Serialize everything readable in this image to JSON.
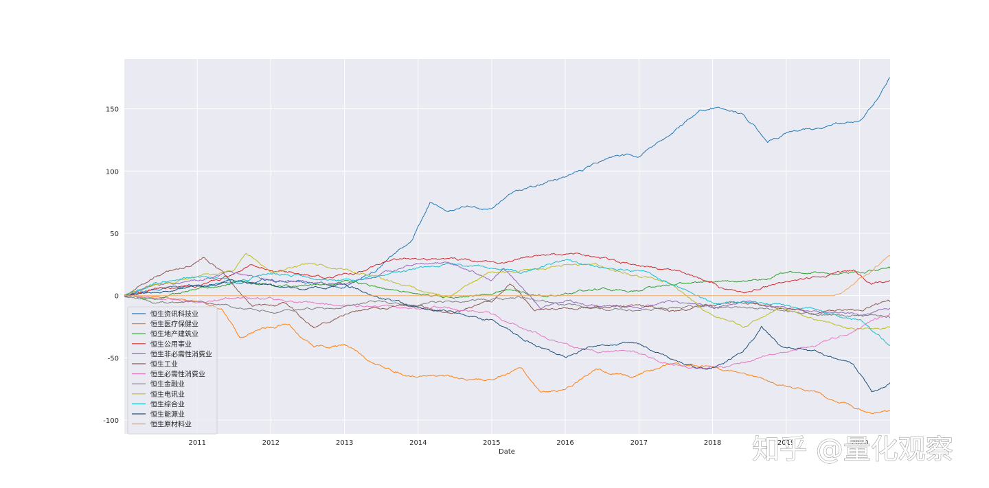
{
  "watermark": "知乎 @量化观察",
  "chart_data": {
    "type": "line",
    "title": "",
    "xlabel": "Date",
    "ylabel": "",
    "xlim": [
      "2010-01-04",
      "2020-05-31"
    ],
    "ylim": [
      -111,
      190
    ],
    "x_ticks": [
      "2011",
      "2012",
      "2013",
      "2014",
      "2015",
      "2016",
      "2017",
      "2018",
      "2019",
      "2020"
    ],
    "y_ticks": [
      -100,
      -50,
      0,
      50,
      100,
      150
    ],
    "grid": true,
    "legend_position": "lower-left",
    "series": [
      {
        "name": "恒生资讯科技业",
        "color": "#1f77b4",
        "points": [
          [
            "2010-01-04",
            0
          ],
          [
            "2010-06-01",
            4
          ],
          [
            "2011-01-01",
            8
          ],
          [
            "2011-07-01",
            10
          ],
          [
            "2012-01-01",
            12
          ],
          [
            "2012-07-01",
            10
          ],
          [
            "2013-01-01",
            8
          ],
          [
            "2013-06-01",
            20
          ],
          [
            "2013-12-01",
            45
          ],
          [
            "2014-03-01",
            75
          ],
          [
            "2014-06-01",
            68
          ],
          [
            "2014-09-01",
            72
          ],
          [
            "2015-01-01",
            70
          ],
          [
            "2015-04-01",
            82
          ],
          [
            "2015-08-01",
            88
          ],
          [
            "2016-01-01",
            96
          ],
          [
            "2016-06-01",
            105
          ],
          [
            "2016-09-01",
            113
          ],
          [
            "2017-01-01",
            112
          ],
          [
            "2017-06-01",
            128
          ],
          [
            "2017-11-01",
            150
          ],
          [
            "2018-02-01",
            152
          ],
          [
            "2018-06-01",
            145
          ],
          [
            "2018-10-01",
            125
          ],
          [
            "2019-01-01",
            130
          ],
          [
            "2019-06-01",
            134
          ],
          [
            "2019-10-01",
            138
          ],
          [
            "2020-01-01",
            140
          ],
          [
            "2020-03-01",
            152
          ],
          [
            "2020-05-31",
            175
          ]
        ]
      },
      {
        "name": "恒生医疗保健业",
        "color": "#ff7f0e",
        "points": [
          [
            "2010-01-04",
            0
          ],
          [
            "2010-06-01",
            -2
          ],
          [
            "2011-01-01",
            -5
          ],
          [
            "2011-05-01",
            -10
          ],
          [
            "2011-08-01",
            -35
          ],
          [
            "2011-11-01",
            -28
          ],
          [
            "2012-04-01",
            -22
          ],
          [
            "2012-08-01",
            -42
          ],
          [
            "2013-01-01",
            -40
          ],
          [
            "2013-06-01",
            -55
          ],
          [
            "2013-11-01",
            -63
          ],
          [
            "2014-06-01",
            -65
          ],
          [
            "2015-01-01",
            -68
          ],
          [
            "2015-06-01",
            -60
          ],
          [
            "2015-09-01",
            -78
          ],
          [
            "2016-01-01",
            -75
          ],
          [
            "2016-06-01",
            -60
          ],
          [
            "2016-12-01",
            -65
          ],
          [
            "2017-06-01",
            -55
          ],
          [
            "2018-01-01",
            -57
          ],
          [
            "2018-06-01",
            -62
          ],
          [
            "2018-12-01",
            -72
          ],
          [
            "2019-06-01",
            -78
          ],
          [
            "2019-12-01",
            -90
          ],
          [
            "2020-03-01",
            -95
          ],
          [
            "2020-05-31",
            -92
          ]
        ]
      },
      {
        "name": "恒生地产建筑业",
        "color": "#2ca02c",
        "points": [
          [
            "2010-01-04",
            0
          ],
          [
            "2010-06-01",
            -3
          ],
          [
            "2011-01-01",
            5
          ],
          [
            "2011-08-01",
            10
          ],
          [
            "2012-06-01",
            8
          ],
          [
            "2013-01-01",
            12
          ],
          [
            "2013-06-01",
            6
          ],
          [
            "2014-01-01",
            2
          ],
          [
            "2014-08-01",
            -2
          ],
          [
            "2015-03-01",
            5
          ],
          [
            "2015-09-01",
            0
          ],
          [
            "2016-06-01",
            5
          ],
          [
            "2017-01-01",
            4
          ],
          [
            "2017-08-01",
            10
          ],
          [
            "2018-06-01",
            12
          ],
          [
            "2019-01-01",
            17
          ],
          [
            "2019-06-01",
            20
          ],
          [
            "2020-01-01",
            18
          ],
          [
            "2020-05-31",
            22
          ]
        ]
      },
      {
        "name": "恒生公用事业",
        "color": "#d62728",
        "points": [
          [
            "2010-01-04",
            0
          ],
          [
            "2010-06-01",
            5
          ],
          [
            "2011-01-01",
            8
          ],
          [
            "2011-06-01",
            15
          ],
          [
            "2011-10-01",
            25
          ],
          [
            "2012-03-01",
            20
          ],
          [
            "2012-09-01",
            15
          ],
          [
            "2013-03-01",
            18
          ],
          [
            "2013-09-01",
            30
          ],
          [
            "2014-03-01",
            28
          ],
          [
            "2014-09-01",
            28
          ],
          [
            "2015-03-01",
            28
          ],
          [
            "2015-09-01",
            32
          ],
          [
            "2016-03-01",
            33
          ],
          [
            "2016-09-01",
            28
          ],
          [
            "2017-03-01",
            22
          ],
          [
            "2017-09-01",
            18
          ],
          [
            "2018-03-01",
            5
          ],
          [
            "2018-06-01",
            2
          ],
          [
            "2018-12-01",
            10
          ],
          [
            "2019-06-01",
            15
          ],
          [
            "2019-12-01",
            20
          ],
          [
            "2020-03-01",
            10
          ],
          [
            "2020-05-31",
            12
          ]
        ]
      },
      {
        "name": "恒生非必需性消费业",
        "color": "#9467bd",
        "points": [
          [
            "2010-01-04",
            0
          ],
          [
            "2010-06-01",
            8
          ],
          [
            "2011-01-01",
            12
          ],
          [
            "2011-06-01",
            18
          ],
          [
            "2012-01-01",
            12
          ],
          [
            "2012-06-01",
            10
          ],
          [
            "2013-01-01",
            8
          ],
          [
            "2013-06-01",
            15
          ],
          [
            "2014-01-01",
            26
          ],
          [
            "2014-06-01",
            27
          ],
          [
            "2015-01-01",
            12
          ],
          [
            "2015-03-01",
            22
          ],
          [
            "2015-06-01",
            5
          ],
          [
            "2015-09-01",
            -10
          ],
          [
            "2016-01-01",
            -5
          ],
          [
            "2016-06-01",
            -8
          ],
          [
            "2017-01-01",
            -10
          ],
          [
            "2017-06-01",
            -5
          ],
          [
            "2018-01-01",
            -8
          ],
          [
            "2018-06-01",
            -5
          ],
          [
            "2019-01-01",
            -10
          ],
          [
            "2019-06-01",
            -12
          ],
          [
            "2020-01-01",
            -15
          ],
          [
            "2020-05-31",
            -10
          ]
        ]
      },
      {
        "name": "恒生工业",
        "color": "#8c564b",
        "points": [
          [
            "2010-01-04",
            0
          ],
          [
            "2010-06-01",
            15
          ],
          [
            "2010-12-01",
            25
          ],
          [
            "2011-02-01",
            32
          ],
          [
            "2011-05-01",
            20
          ],
          [
            "2011-10-01",
            -10
          ],
          [
            "2012-03-01",
            -5
          ],
          [
            "2012-08-01",
            -25
          ],
          [
            "2013-01-01",
            -15
          ],
          [
            "2013-06-01",
            -10
          ],
          [
            "2014-01-01",
            -8
          ],
          [
            "2014-06-01",
            -15
          ],
          [
            "2015-01-01",
            -5
          ],
          [
            "2015-04-01",
            10
          ],
          [
            "2015-08-01",
            -12
          ],
          [
            "2016-06-01",
            -10
          ],
          [
            "2017-01-01",
            -8
          ],
          [
            "2017-06-01",
            -12
          ],
          [
            "2018-06-01",
            -5
          ],
          [
            "2019-01-01",
            -10
          ],
          [
            "2019-06-01",
            -15
          ],
          [
            "2020-01-01",
            -10
          ],
          [
            "2020-05-31",
            -5
          ]
        ]
      },
      {
        "name": "恒生必需性消费业",
        "color": "#e377c2",
        "points": [
          [
            "2010-01-04",
            0
          ],
          [
            "2010-06-01",
            -2
          ],
          [
            "2011-01-01",
            -5
          ],
          [
            "2011-06-01",
            -3
          ],
          [
            "2012-01-01",
            -2
          ],
          [
            "2012-06-01",
            -5
          ],
          [
            "2013-01-01",
            -8
          ],
          [
            "2013-06-01",
            -8
          ],
          [
            "2014-01-01",
            -10
          ],
          [
            "2014-06-01",
            -10
          ],
          [
            "2015-01-01",
            -15
          ],
          [
            "2015-06-01",
            -25
          ],
          [
            "2015-12-01",
            -38
          ],
          [
            "2016-06-01",
            -45
          ],
          [
            "2016-12-01",
            -45
          ],
          [
            "2017-06-01",
            -55
          ],
          [
            "2017-12-01",
            -58
          ],
          [
            "2018-06-01",
            -55
          ],
          [
            "2018-12-01",
            -45
          ],
          [
            "2019-06-01",
            -40
          ],
          [
            "2019-12-01",
            -28
          ],
          [
            "2020-03-01",
            -20
          ],
          [
            "2020-05-31",
            -14
          ]
        ]
      },
      {
        "name": "恒生金融业",
        "color": "#7f7f7f",
        "points": [
          [
            "2010-01-04",
            0
          ],
          [
            "2010-06-01",
            -5
          ],
          [
            "2011-01-01",
            -5
          ],
          [
            "2011-06-01",
            -8
          ],
          [
            "2012-01-01",
            -12
          ],
          [
            "2012-06-01",
            -10
          ],
          [
            "2013-01-01",
            -8
          ],
          [
            "2013-06-01",
            -6
          ],
          [
            "2014-01-01",
            -8
          ],
          [
            "2014-06-01",
            -5
          ],
          [
            "2015-01-01",
            -3
          ],
          [
            "2015-06-01",
            -2
          ],
          [
            "2016-01-01",
            -8
          ],
          [
            "2016-06-01",
            -10
          ],
          [
            "2017-01-01",
            -12
          ],
          [
            "2017-06-01",
            -10
          ],
          [
            "2018-01-01",
            -8
          ],
          [
            "2018-06-01",
            -10
          ],
          [
            "2019-01-01",
            -12
          ],
          [
            "2019-06-01",
            -15
          ],
          [
            "2020-01-01",
            -16
          ],
          [
            "2020-05-31",
            -18
          ]
        ]
      },
      {
        "name": "恒生电讯业",
        "color": "#bcbd22",
        "points": [
          [
            "2010-01-04",
            0
          ],
          [
            "2010-06-01",
            8
          ],
          [
            "2011-01-01",
            15
          ],
          [
            "2011-07-01",
            20
          ],
          [
            "2011-09-01",
            35
          ],
          [
            "2012-01-01",
            18
          ],
          [
            "2012-07-01",
            25
          ],
          [
            "2013-01-01",
            20
          ],
          [
            "2013-06-01",
            15
          ],
          [
            "2014-01-01",
            5
          ],
          [
            "2014-06-01",
            0
          ],
          [
            "2015-01-01",
            18
          ],
          [
            "2015-06-01",
            20
          ],
          [
            "2016-01-01",
            25
          ],
          [
            "2016-06-01",
            25
          ],
          [
            "2017-01-01",
            15
          ],
          [
            "2017-06-01",
            10
          ],
          [
            "2018-01-01",
            -15
          ],
          [
            "2018-06-01",
            -25
          ],
          [
            "2018-12-01",
            -10
          ],
          [
            "2019-06-01",
            -20
          ],
          [
            "2020-01-01",
            -28
          ],
          [
            "2020-05-31",
            -25
          ]
        ]
      },
      {
        "name": "恒生综合业",
        "color": "#17becf",
        "points": [
          [
            "2010-01-04",
            0
          ],
          [
            "2010-06-01",
            10
          ],
          [
            "2011-01-01",
            15
          ],
          [
            "2011-07-01",
            12
          ],
          [
            "2012-01-01",
            18
          ],
          [
            "2012-07-01",
            15
          ],
          [
            "2013-01-01",
            12
          ],
          [
            "2013-06-01",
            15
          ],
          [
            "2014-01-01",
            22
          ],
          [
            "2014-06-01",
            25
          ],
          [
            "2015-01-01",
            22
          ],
          [
            "2015-06-01",
            18
          ],
          [
            "2016-01-01",
            28
          ],
          [
            "2016-06-01",
            25
          ],
          [
            "2017-01-01",
            20
          ],
          [
            "2017-06-01",
            10
          ],
          [
            "2018-01-01",
            -5
          ],
          [
            "2018-06-01",
            -5
          ],
          [
            "2019-01-01",
            -8
          ],
          [
            "2019-06-01",
            -12
          ],
          [
            "2020-01-01",
            -20
          ],
          [
            "2020-05-31",
            -40
          ]
        ]
      },
      {
        "name": "恒生能源业",
        "color": "#1f4e79",
        "points": [
          [
            "2010-01-04",
            0
          ],
          [
            "2010-06-01",
            3
          ],
          [
            "2011-01-01",
            8
          ],
          [
            "2011-07-01",
            12
          ],
          [
            "2012-01-01",
            8
          ],
          [
            "2012-06-01",
            5
          ],
          [
            "2013-01-01",
            8
          ],
          [
            "2013-06-01",
            0
          ],
          [
            "2014-01-01",
            -10
          ],
          [
            "2014-06-01",
            -12
          ],
          [
            "2015-01-01",
            -20
          ],
          [
            "2015-06-01",
            -35
          ],
          [
            "2016-01-01",
            -50
          ],
          [
            "2016-06-01",
            -40
          ],
          [
            "2016-12-01",
            -38
          ],
          [
            "2017-06-01",
            -50
          ],
          [
            "2017-12-01",
            -60
          ],
          [
            "2018-06-01",
            -45
          ],
          [
            "2018-09-01",
            -25
          ],
          [
            "2018-12-01",
            -40
          ],
          [
            "2019-06-01",
            -45
          ],
          [
            "2019-12-01",
            -55
          ],
          [
            "2020-03-01",
            -78
          ],
          [
            "2020-05-31",
            -70
          ]
        ]
      },
      {
        "name": "恒生原材料业",
        "color": "#f2a65a",
        "points": [
          [
            "2010-01-04",
            0
          ],
          [
            "2019-09-01",
            0
          ],
          [
            "2019-12-01",
            10
          ],
          [
            "2020-03-01",
            20
          ],
          [
            "2020-05-31",
            32
          ]
        ]
      }
    ]
  }
}
